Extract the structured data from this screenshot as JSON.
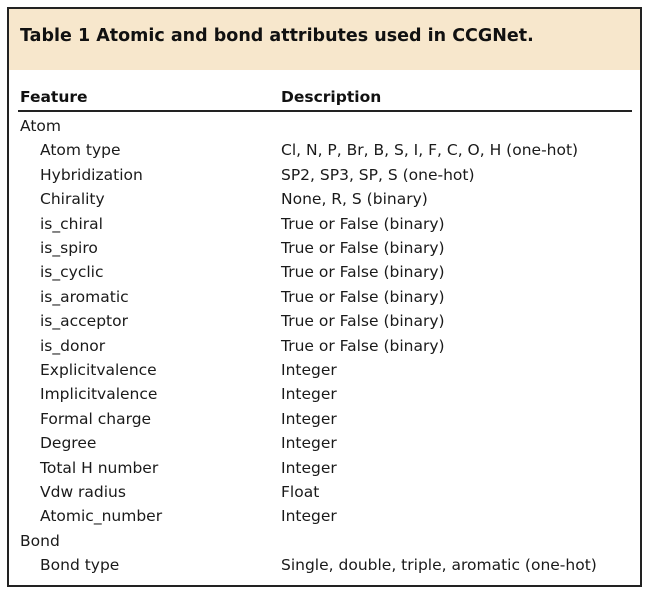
{
  "table": {
    "title": "Table 1 Atomic and bond attributes used in CCGNet.",
    "headers": {
      "feature": "Feature",
      "description": "Description"
    },
    "rows": [
      {
        "feature": "Atom",
        "description": "",
        "indent": false
      },
      {
        "feature": "Atom type",
        "description": "Cl, N, P, Br, B, S, I, F, C, O, H (one-hot)",
        "indent": true
      },
      {
        "feature": "Hybridization",
        "description": "SP2, SP3, SP, S (one-hot)",
        "indent": true
      },
      {
        "feature": "Chirality",
        "description": "None, R, S (binary)",
        "indent": true
      },
      {
        "feature": "is_chiral",
        "description": "True or False (binary)",
        "indent": true
      },
      {
        "feature": "is_spiro",
        "description": "True or False (binary)",
        "indent": true
      },
      {
        "feature": "is_cyclic",
        "description": "True or False (binary)",
        "indent": true
      },
      {
        "feature": "is_aromatic",
        "description": "True or False (binary)",
        "indent": true
      },
      {
        "feature": "is_acceptor",
        "description": "True or False (binary)",
        "indent": true
      },
      {
        "feature": "is_donor",
        "description": "True or False (binary)",
        "indent": true
      },
      {
        "feature": "Explicitvalence",
        "description": "Integer",
        "indent": true
      },
      {
        "feature": "Implicitvalence",
        "description": "Integer",
        "indent": true
      },
      {
        "feature": "Formal charge",
        "description": "Integer",
        "indent": true
      },
      {
        "feature": "Degree",
        "description": "Integer",
        "indent": true
      },
      {
        "feature": "Total H number",
        "description": "Integer",
        "indent": true
      },
      {
        "feature": "Vdw radius",
        "description": "Float",
        "indent": true
      },
      {
        "feature": "Atomic_number",
        "description": "Integer",
        "indent": true
      },
      {
        "feature": "Bond",
        "description": "",
        "indent": false
      },
      {
        "feature": "Bond type",
        "description": "Single, double, triple, aromatic (one-hot)",
        "indent": true
      }
    ]
  }
}
